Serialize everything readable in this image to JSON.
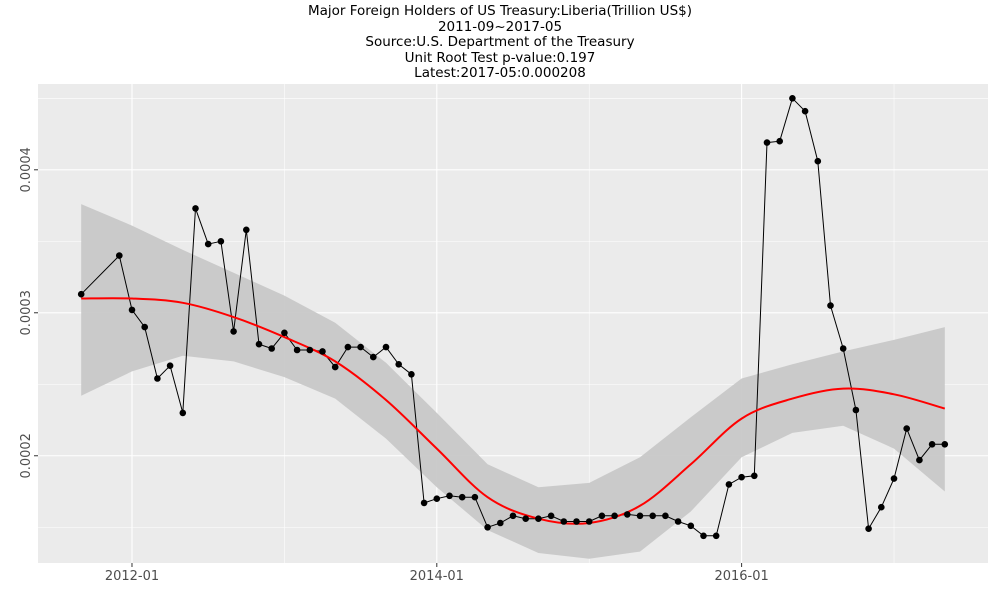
{
  "titles": {
    "line1": "Major Foreign Holders of US Treasury:Liberia(Trillion US$)",
    "line2": "2011-09~2017-05",
    "line3": "Source:U.S. Department of the Treasury",
    "line4": "Unit Root Test p-value:0.197",
    "line5": "Latest:2017-05:0.000208"
  },
  "chart_data": {
    "type": "line",
    "title": "Major Foreign Holders of US Treasury:Liberia(Trillion US$)",
    "xlabel": "",
    "ylabel": "",
    "x_tick_labels": [
      "2012-01",
      "2014-01",
      "2016-01"
    ],
    "y_tick_labels": [
      "0.0002",
      "0.0003",
      "0.0004"
    ],
    "ylim": [
      0.000125,
      0.00046
    ],
    "grid": true,
    "series": [
      {
        "values": [
          [
            "2011-09",
            0.000313
          ],
          [
            "2011-12",
            0.00034
          ],
          [
            "2012-01",
            0.000302
          ],
          [
            "2012-02",
            0.00029
          ],
          [
            "2012-03",
            0.000254
          ],
          [
            "2012-04",
            0.000263
          ],
          [
            "2012-05",
            0.00023
          ],
          [
            "2012-06",
            0.000373
          ],
          [
            "2012-07",
            0.000348
          ],
          [
            "2012-08",
            0.00035
          ],
          [
            "2012-09",
            0.000287
          ],
          [
            "2012-10",
            0.000358
          ],
          [
            "2012-11",
            0.000278
          ],
          [
            "2012-12",
            0.000275
          ],
          [
            "2013-01",
            0.000286
          ],
          [
            "2013-02",
            0.000274
          ],
          [
            "2013-03",
            0.000274
          ],
          [
            "2013-04",
            0.000273
          ],
          [
            "2013-05",
            0.000262
          ],
          [
            "2013-06",
            0.000276
          ],
          [
            "2013-07",
            0.000276
          ],
          [
            "2013-08",
            0.000269
          ],
          [
            "2013-09",
            0.000276
          ],
          [
            "2013-10",
            0.000264
          ],
          [
            "2013-11",
            0.000257
          ],
          [
            "2013-12",
            0.000167
          ],
          [
            "2014-01",
            0.00017
          ],
          [
            "2014-02",
            0.000172
          ],
          [
            "2014-03",
            0.000171
          ],
          [
            "2014-04",
            0.000171
          ],
          [
            "2014-05",
            0.00015
          ],
          [
            "2014-06",
            0.000153
          ],
          [
            "2014-07",
            0.000158
          ],
          [
            "2014-08",
            0.000156
          ],
          [
            "2014-09",
            0.000156
          ],
          [
            "2014-10",
            0.000158
          ],
          [
            "2014-11",
            0.000154
          ],
          [
            "2014-12",
            0.000154
          ],
          [
            "2015-01",
            0.000154
          ],
          [
            "2015-02",
            0.000158
          ],
          [
            "2015-03",
            0.000158
          ],
          [
            "2015-04",
            0.000159
          ],
          [
            "2015-05",
            0.000158
          ],
          [
            "2015-06",
            0.000158
          ],
          [
            "2015-07",
            0.000158
          ],
          [
            "2015-08",
            0.000154
          ],
          [
            "2015-09",
            0.000151
          ],
          [
            "2015-10",
            0.000144
          ],
          [
            "2015-11",
            0.000144
          ],
          [
            "2015-12",
            0.00018
          ],
          [
            "2016-01",
            0.000185
          ],
          [
            "2016-02",
            0.000186
          ],
          [
            "2016-03",
            0.000419
          ],
          [
            "2016-04",
            0.00042
          ],
          [
            "2016-05",
            0.00045
          ],
          [
            "2016-06",
            0.000441
          ],
          [
            "2016-07",
            0.000406
          ],
          [
            "2016-08",
            0.000305
          ],
          [
            "2016-09",
            0.000275
          ],
          [
            "2016-10",
            0.000232
          ],
          [
            "2016-11",
            0.000149
          ],
          [
            "2016-12",
            0.000164
          ],
          [
            "2017-01",
            0.000184
          ],
          [
            "2017-02",
            0.000219
          ],
          [
            "2017-03",
            0.000197
          ],
          [
            "2017-04",
            0.000208
          ],
          [
            "2017-05",
            0.000208
          ]
        ],
        "color": "#000000"
      },
      {
        "values": [
          [
            "2011-09",
            0.00031
          ],
          [
            "2012-01",
            0.00031
          ],
          [
            "2012-05",
            0.000307
          ],
          [
            "2012-09",
            0.000297
          ],
          [
            "2013-01",
            0.000283
          ],
          [
            "2013-05",
            0.000266
          ],
          [
            "2013-09",
            0.000239
          ],
          [
            "2014-01",
            0.000205
          ],
          [
            "2014-05",
            0.000171
          ],
          [
            "2014-09",
            0.000156
          ],
          [
            "2015-01",
            0.000153
          ],
          [
            "2015-05",
            0.000165
          ],
          [
            "2015-09",
            0.000194
          ],
          [
            "2016-01",
            0.000226
          ],
          [
            "2016-05",
            0.00024
          ],
          [
            "2016-09",
            0.000247
          ],
          [
            "2017-01",
            0.000243
          ],
          [
            "2017-05",
            0.000233
          ]
        ],
        "color": "#ff0000"
      }
    ],
    "band": {
      "x": [
        "2011-09",
        "2012-01",
        "2012-05",
        "2012-09",
        "2013-01",
        "2013-05",
        "2013-09",
        "2014-01",
        "2014-05",
        "2014-09",
        "2015-01",
        "2015-05",
        "2015-09",
        "2016-01",
        "2016-05",
        "2016-09",
        "2017-01",
        "2017-05"
      ],
      "upper": [
        0.000376,
        0.000361,
        0.000344,
        0.000328,
        0.000312,
        0.000293,
        0.000265,
        0.00023,
        0.000194,
        0.000178,
        0.000181,
        0.000199,
        0.000227,
        0.000254,
        0.000264,
        0.000273,
        0.000281,
        0.00029
      ],
      "lower": [
        0.000242,
        0.000259,
        0.00027,
        0.000266,
        0.000255,
        0.00024,
        0.000212,
        0.000178,
        0.000148,
        0.000132,
        0.000128,
        0.000133,
        0.000161,
        0.000199,
        0.000216,
        0.000221,
        0.000205,
        0.000175
      ],
      "color": "#c8c8c8"
    }
  }
}
